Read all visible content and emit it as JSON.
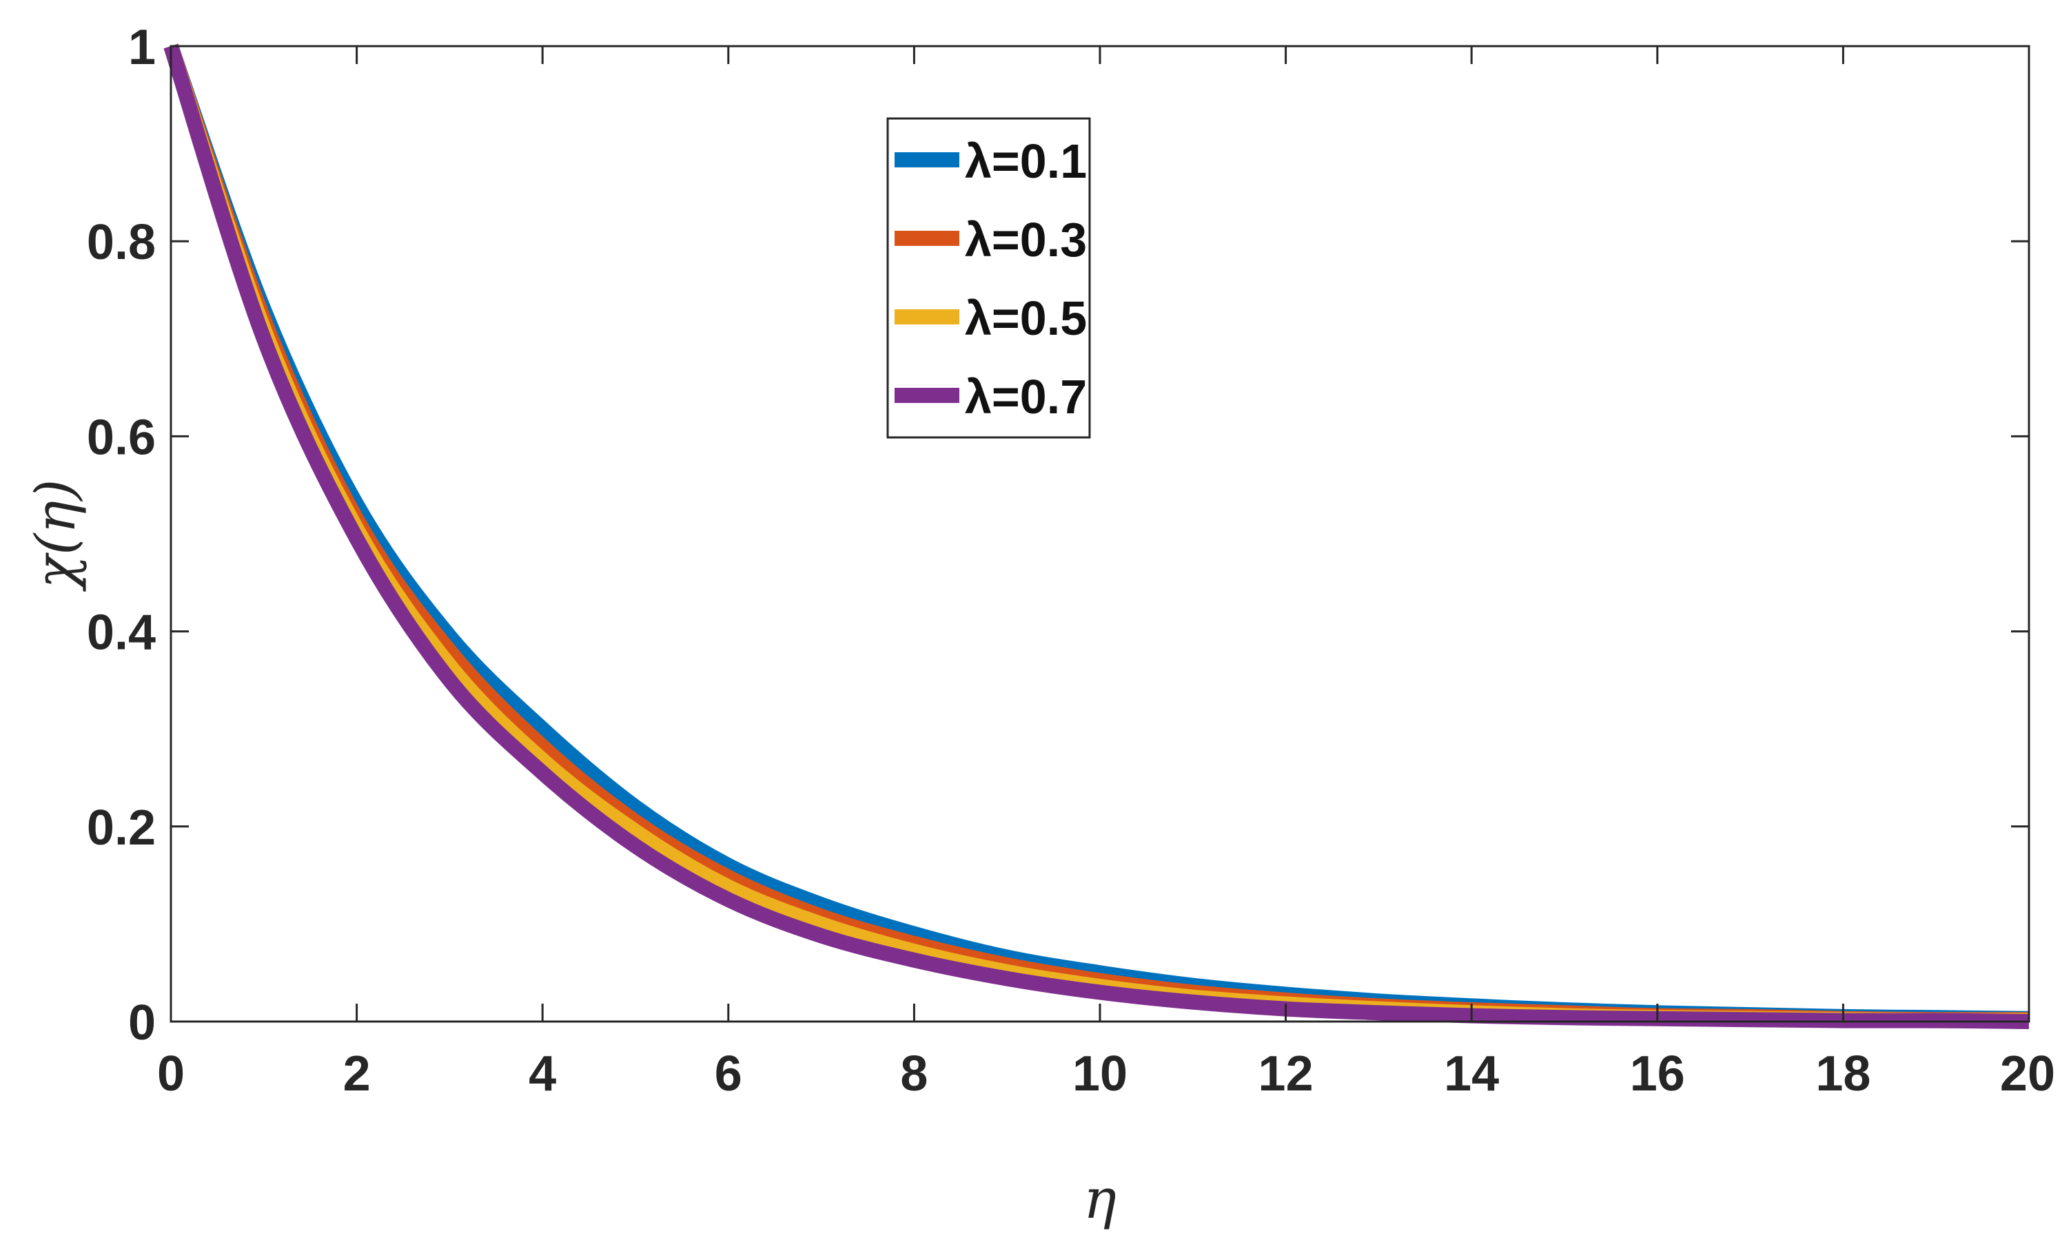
{
  "chart_data": {
    "type": "line",
    "title": "",
    "xlabel": "η",
    "ylabel": "χ(η)",
    "xlim": [
      0,
      20
    ],
    "ylim": [
      0,
      1
    ],
    "grid": false,
    "legend_position": "top-center",
    "x_ticks": [
      "0",
      "2",
      "4",
      "6",
      "8",
      "10",
      "12",
      "14",
      "16",
      "18",
      "20"
    ],
    "y_ticks": [
      "0",
      "0.2",
      "0.4",
      "0.6",
      "0.8",
      "1"
    ],
    "x": [
      0,
      1,
      2,
      3,
      4,
      5,
      6,
      7,
      8,
      9,
      10,
      11,
      12,
      13,
      14,
      15,
      16,
      17,
      18,
      19,
      20
    ],
    "series": [
      {
        "name": "λ=0.1",
        "color": "#0072BD",
        "values": [
          1.0,
          0.73,
          0.53,
          0.395,
          0.3,
          0.22,
          0.16,
          0.12,
          0.09,
          0.066,
          0.05,
          0.037,
          0.028,
          0.021,
          0.016,
          0.012,
          0.009,
          0.007,
          0.005,
          0.004,
          0.003
        ]
      },
      {
        "name": "λ=0.3",
        "color": "#D95319",
        "values": [
          1.0,
          0.72,
          0.515,
          0.38,
          0.282,
          0.205,
          0.148,
          0.108,
          0.08,
          0.058,
          0.042,
          0.03,
          0.022,
          0.016,
          0.012,
          0.009,
          0.006,
          0.005,
          0.003,
          0.002,
          0.002
        ]
      },
      {
        "name": "λ=0.5",
        "color": "#EDB120",
        "values": [
          1.0,
          0.71,
          0.505,
          0.365,
          0.268,
          0.195,
          0.138,
          0.1,
          0.072,
          0.051,
          0.036,
          0.025,
          0.018,
          0.013,
          0.009,
          0.006,
          0.004,
          0.003,
          0.002,
          0.001,
          0.001
        ]
      },
      {
        "name": "λ=0.7",
        "color": "#7E2F8E",
        "values": [
          1.0,
          0.7,
          0.495,
          0.35,
          0.255,
          0.18,
          0.125,
          0.088,
          0.063,
          0.044,
          0.03,
          0.02,
          0.013,
          0.009,
          0.006,
          0.004,
          0.003,
          0.002,
          0.001,
          0.001,
          0.0
        ]
      }
    ]
  }
}
